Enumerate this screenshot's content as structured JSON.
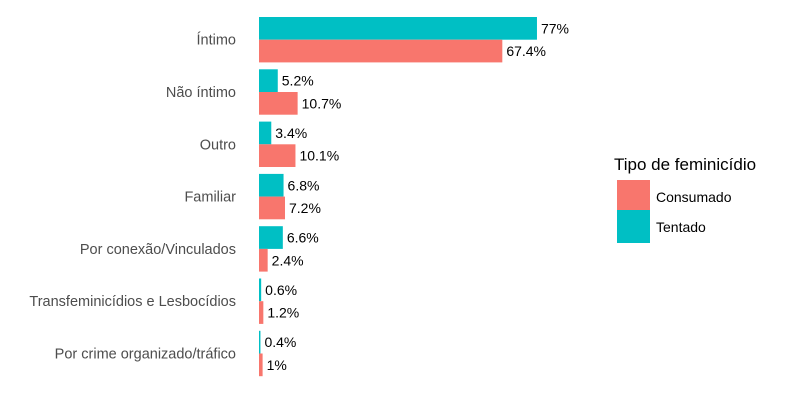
{
  "chart_data": {
    "type": "bar",
    "orientation": "horizontal",
    "categories": [
      "Íntimo",
      "Não íntimo",
      "Outro",
      "Familiar",
      "Por conexão/Vinculados",
      "Transfeminicídios e Lesbocídios",
      "Por crime organizado/tráfico"
    ],
    "series": [
      {
        "name": "Tentado",
        "color": "#00bfc4",
        "values": [
          77,
          5.2,
          3.4,
          6.8,
          6.6,
          0.6,
          0.4
        ],
        "labels": [
          "77%",
          "5.2%",
          "3.4%",
          "6.8%",
          "6.6%",
          "0.6%",
          "0.4%"
        ]
      },
      {
        "name": "Consumado",
        "color": "#f8766d",
        "values": [
          67.4,
          10.7,
          10.1,
          7.2,
          2.4,
          1.2,
          1
        ],
        "labels": [
          "67.4%",
          "10.7%",
          "10.1%",
          "7.2%",
          "2.4%",
          "1.2%",
          "1%"
        ]
      }
    ],
    "xlim": [
      0,
      77
    ],
    "grid": false,
    "legend": {
      "title": "Tipo de feminicídio",
      "position": "right",
      "entries": [
        {
          "name": "Consumado",
          "color": "#f8766d"
        },
        {
          "name": "Tentado",
          "color": "#00bfc4"
        }
      ]
    }
  }
}
